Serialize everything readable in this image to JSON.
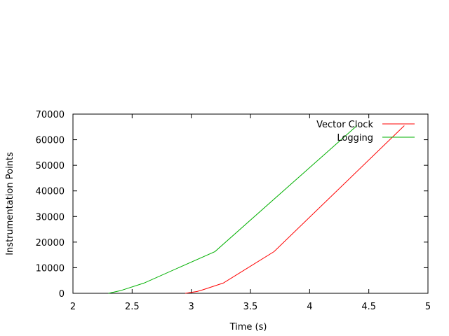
{
  "chart_data": {
    "type": "line",
    "xlabel": "Time (s)",
    "ylabel": "Instrumentation Points",
    "xlim": [
      2,
      5
    ],
    "ylim": [
      0,
      70000
    ],
    "x_ticks": [
      "2",
      "2.5",
      "3",
      "3.5",
      "4",
      "4.5",
      "5"
    ],
    "y_ticks": [
      "0",
      "10000",
      "20000",
      "30000",
      "40000",
      "50000",
      "60000",
      "70000"
    ],
    "legend_position": "top-right",
    "grid": false,
    "series": [
      {
        "name": "Vector Clock",
        "color": "#ff0000",
        "points": [
          [
            2.95,
            0
          ],
          [
            3.05,
            700
          ],
          [
            3.1,
            1400
          ],
          [
            3.27,
            4000
          ],
          [
            3.7,
            16300
          ],
          [
            4.8,
            65500
          ]
        ]
      },
      {
        "name": "Logging",
        "color": "#00b000",
        "points": [
          [
            2.3,
            0
          ],
          [
            2.4,
            1000
          ],
          [
            2.6,
            4000
          ],
          [
            3.2,
            16300
          ],
          [
            4.4,
            65500
          ]
        ]
      }
    ]
  }
}
